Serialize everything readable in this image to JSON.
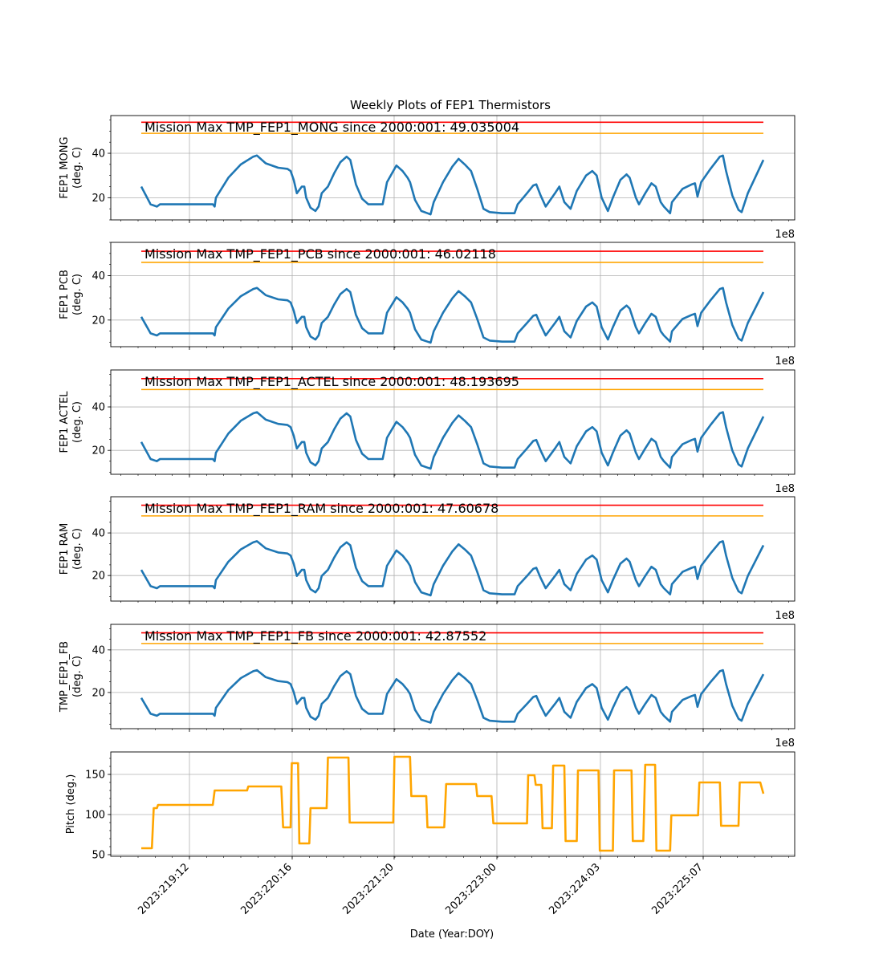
{
  "chart_data": {
    "type": "line",
    "title": "Weekly Plots of FEP1 Thermistors",
    "xlabel": "Date (Year:DOY)",
    "x_tick_labels": [
      "2023:219:12",
      "2023:220:16",
      "2023:221:20",
      "2023:223:00",
      "2023:224:03",
      "2023:225:07"
    ],
    "x_offset_label": "1e8",
    "grid": true,
    "panels": [
      {
        "ylabel": [
          "FEP1 MONG",
          "(deg. C)"
        ],
        "yticks": [
          20,
          40
        ],
        "ylim": [
          10,
          57
        ],
        "annotation": "Mission Max TMP_FEP1_MONG since 2000:001: 49.035004",
        "limits": [
          {
            "color": "#ff0000",
            "value": 54
          },
          {
            "color": "#ffa500",
            "value": 49
          }
        ],
        "series_color": "#1f77b4",
        "profile": "mong",
        "base": 17,
        "scale": 1.0,
        "show_offset": true
      },
      {
        "ylabel": [
          "FEP1 PCB",
          "(deg. C)"
        ],
        "yticks": [
          20,
          40
        ],
        "ylim": [
          8,
          55
        ],
        "annotation": "Mission Max TMP_FEP1_PCB since 2000:001: 46.02118",
        "limits": [
          {
            "color": "#ff0000",
            "value": 51
          },
          {
            "color": "#ffa500",
            "value": 46
          }
        ],
        "series_color": "#1f77b4",
        "profile": "mong",
        "base": 14,
        "scale": 0.93,
        "show_offset": true
      },
      {
        "ylabel": [
          "FEP1 ACTEL",
          "(deg. C)"
        ],
        "yticks": [
          20,
          40
        ],
        "ylim": [
          9,
          57
        ],
        "annotation": "Mission Max TMP_FEP1_ACTEL since 2000:001: 48.193695",
        "limits": [
          {
            "color": "#ff0000",
            "value": 53
          },
          {
            "color": "#ffa500",
            "value": 48
          }
        ],
        "series_color": "#1f77b4",
        "profile": "mong",
        "base": 16,
        "scale": 0.98,
        "show_offset": true
      },
      {
        "ylabel": [
          "FEP1 RAM",
          "(deg. C)"
        ],
        "yticks": [
          20,
          40
        ],
        "ylim": [
          8,
          57
        ],
        "annotation": "Mission Max TMP_FEP1_RAM since 2000:001: 47.60678",
        "limits": [
          {
            "color": "#ff0000",
            "value": 53
          },
          {
            "color": "#ffa500",
            "value": 48
          }
        ],
        "series_color": "#1f77b4",
        "profile": "mong",
        "base": 15,
        "scale": 0.96,
        "show_offset": true
      },
      {
        "ylabel": [
          "TMP_FEP1_FB",
          "(deg. C)"
        ],
        "yticks": [
          20,
          40
        ],
        "ylim": [
          3,
          52
        ],
        "annotation": "Mission Max TMP_FEP1_FB since 2000:001: 42.87552",
        "limits": [
          {
            "color": "#ff0000",
            "value": 48
          },
          {
            "color": "#ffa500",
            "value": 43
          }
        ],
        "series_color": "#1f77b4",
        "profile": "mong",
        "base": 10,
        "scale": 0.93,
        "show_offset": true
      },
      {
        "ylabel": [
          "Pitch (deg.)"
        ],
        "yticks": [
          50,
          100,
          150
        ],
        "ylim": [
          48,
          178
        ],
        "annotation": "",
        "limits": [],
        "series_color": "#ffa500",
        "profile": "pitch",
        "show_offset": false
      }
    ],
    "profiles": {
      "mong": [
        [
          0.0,
          25
        ],
        [
          0.015,
          17
        ],
        [
          0.025,
          16
        ],
        [
          0.03,
          17
        ],
        [
          0.115,
          17
        ],
        [
          0.118,
          16
        ],
        [
          0.12,
          20
        ],
        [
          0.14,
          29
        ],
        [
          0.16,
          35
        ],
        [
          0.18,
          38.5
        ],
        [
          0.186,
          39
        ],
        [
          0.2,
          35.5
        ],
        [
          0.22,
          33.5
        ],
        [
          0.235,
          33
        ],
        [
          0.24,
          32
        ],
        [
          0.245,
          28
        ],
        [
          0.25,
          22
        ],
        [
          0.258,
          25
        ],
        [
          0.262,
          25
        ],
        [
          0.265,
          20
        ],
        [
          0.272,
          15.5
        ],
        [
          0.28,
          14
        ],
        [
          0.285,
          16
        ],
        [
          0.29,
          22
        ],
        [
          0.3,
          25
        ],
        [
          0.31,
          31
        ],
        [
          0.32,
          36
        ],
        [
          0.33,
          38.5
        ],
        [
          0.336,
          37
        ],
        [
          0.345,
          26
        ],
        [
          0.355,
          19.5
        ],
        [
          0.365,
          17
        ],
        [
          0.38,
          17
        ],
        [
          0.388,
          17
        ],
        [
          0.395,
          27
        ],
        [
          0.41,
          34.5
        ],
        [
          0.42,
          32
        ],
        [
          0.428,
          29
        ],
        [
          0.432,
          27
        ],
        [
          0.44,
          19
        ],
        [
          0.45,
          14
        ],
        [
          0.46,
          13
        ],
        [
          0.465,
          12.5
        ],
        [
          0.47,
          18
        ],
        [
          0.485,
          27
        ],
        [
          0.5,
          34
        ],
        [
          0.51,
          37.5
        ],
        [
          0.52,
          35
        ],
        [
          0.53,
          32
        ],
        [
          0.54,
          24
        ],
        [
          0.55,
          15
        ],
        [
          0.56,
          13.5
        ],
        [
          0.58,
          13
        ],
        [
          0.6,
          13
        ],
        [
          0.605,
          17
        ],
        [
          0.62,
          22
        ],
        [
          0.63,
          25.5
        ],
        [
          0.635,
          26
        ],
        [
          0.642,
          21
        ],
        [
          0.65,
          16
        ],
        [
          0.665,
          22
        ],
        [
          0.672,
          25
        ],
        [
          0.68,
          18
        ],
        [
          0.69,
          15
        ],
        [
          0.7,
          23
        ],
        [
          0.715,
          30
        ],
        [
          0.725,
          32
        ],
        [
          0.732,
          30
        ],
        [
          0.74,
          20
        ],
        [
          0.75,
          14
        ],
        [
          0.758,
          20
        ],
        [
          0.77,
          28
        ],
        [
          0.78,
          30.5
        ],
        [
          0.785,
          29
        ],
        [
          0.795,
          20
        ],
        [
          0.8,
          17
        ],
        [
          0.81,
          22
        ],
        [
          0.82,
          26.5
        ],
        [
          0.827,
          25
        ],
        [
          0.835,
          18
        ],
        [
          0.84,
          16
        ],
        [
          0.85,
          13
        ],
        [
          0.853,
          18
        ],
        [
          0.87,
          24
        ],
        [
          0.885,
          26
        ],
        [
          0.89,
          26.5
        ],
        [
          0.894,
          20.5
        ],
        [
          0.9,
          27
        ],
        [
          0.915,
          33
        ],
        [
          0.93,
          38.5
        ],
        [
          0.935,
          39
        ],
        [
          0.94,
          32
        ],
        [
          0.95,
          21
        ],
        [
          0.96,
          14.5
        ],
        [
          0.965,
          13.5
        ],
        [
          0.975,
          22
        ],
        [
          1.0,
          37
        ]
      ],
      "pitch": [
        [
          0.0,
          58
        ],
        [
          0.017,
          58
        ],
        [
          0.02,
          108
        ],
        [
          0.025,
          108
        ],
        [
          0.027,
          112
        ],
        [
          0.115,
          112
        ],
        [
          0.118,
          130
        ],
        [
          0.17,
          130
        ],
        [
          0.172,
          135
        ],
        [
          0.225,
          135
        ],
        [
          0.228,
          84
        ],
        [
          0.24,
          84
        ],
        [
          0.242,
          164
        ],
        [
          0.252,
          164
        ],
        [
          0.254,
          64
        ],
        [
          0.27,
          64
        ],
        [
          0.272,
          108
        ],
        [
          0.298,
          108
        ],
        [
          0.3,
          171
        ],
        [
          0.333,
          171
        ],
        [
          0.335,
          90
        ],
        [
          0.405,
          90
        ],
        [
          0.407,
          172
        ],
        [
          0.432,
          172
        ],
        [
          0.434,
          123
        ],
        [
          0.458,
          123
        ],
        [
          0.46,
          84
        ],
        [
          0.487,
          84
        ],
        [
          0.49,
          138
        ],
        [
          0.538,
          138
        ],
        [
          0.54,
          123
        ],
        [
          0.563,
          123
        ],
        [
          0.566,
          89
        ],
        [
          0.62,
          89
        ],
        [
          0.622,
          149
        ],
        [
          0.632,
          149
        ],
        [
          0.634,
          137
        ],
        [
          0.643,
          137
        ],
        [
          0.645,
          83
        ],
        [
          0.66,
          83
        ],
        [
          0.662,
          161
        ],
        [
          0.68,
          161
        ],
        [
          0.682,
          67
        ],
        [
          0.7,
          67
        ],
        [
          0.702,
          155
        ],
        [
          0.735,
          155
        ],
        [
          0.737,
          55
        ],
        [
          0.758,
          55
        ],
        [
          0.76,
          155
        ],
        [
          0.788,
          155
        ],
        [
          0.79,
          67
        ],
        [
          0.807,
          67
        ],
        [
          0.81,
          162
        ],
        [
          0.826,
          162
        ],
        [
          0.828,
          55
        ],
        [
          0.85,
          55
        ],
        [
          0.852,
          99
        ],
        [
          0.895,
          99
        ],
        [
          0.897,
          140
        ],
        [
          0.93,
          140
        ],
        [
          0.932,
          86
        ],
        [
          0.96,
          86
        ],
        [
          0.962,
          140
        ],
        [
          0.995,
          140
        ],
        [
          1.0,
          126
        ]
      ]
    }
  }
}
